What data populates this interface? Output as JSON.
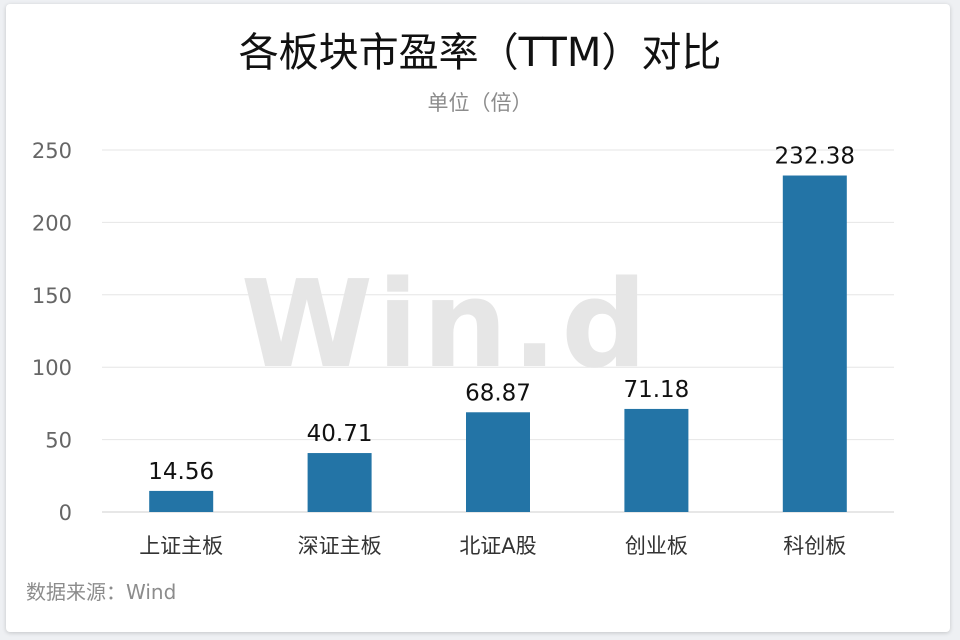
{
  "chart_data": {
    "type": "bar",
    "title": "各板块市盈率（TTM）对比",
    "subtitle": "单位（倍）",
    "categories": [
      "上证主板",
      "深证主板",
      "北证A股",
      "创业板",
      "科创板"
    ],
    "values": [
      14.56,
      40.71,
      68.87,
      71.18,
      232.38
    ],
    "data_labels": [
      "14.56",
      "40.71",
      "68.87",
      "71.18",
      "232.38"
    ],
    "ylim": [
      0,
      250
    ],
    "yticks": [
      0,
      50,
      100,
      150,
      200,
      250
    ],
    "grid": true,
    "legend": "none",
    "bar_color": "#2374a6",
    "source": "数据来源：Wind",
    "watermark": "Win.d"
  }
}
